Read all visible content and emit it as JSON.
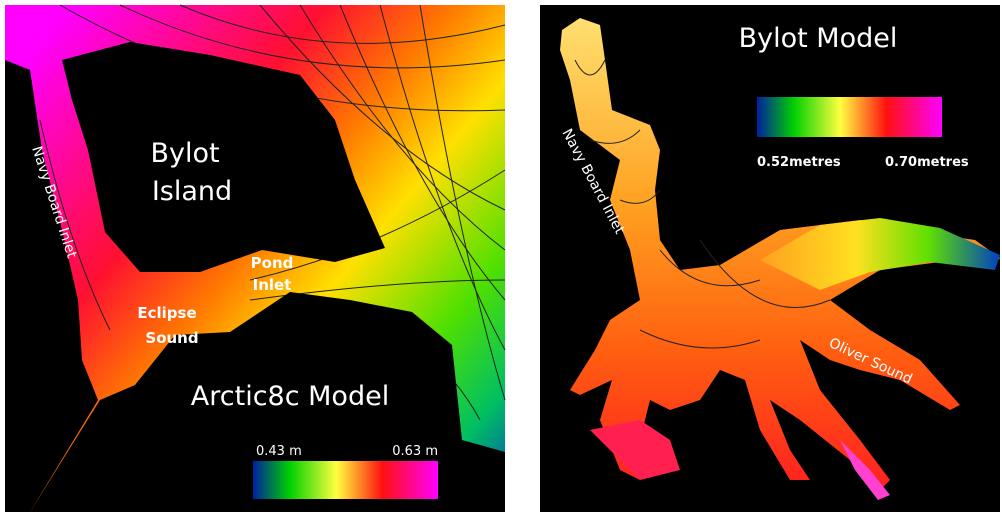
{
  "left_map": {
    "island_label": [
      "Bylot",
      "Island"
    ],
    "inlet_label": "Navy Board Inlet",
    "pond_inlet_label": [
      "Pond",
      "Inlet"
    ],
    "eclipse_sound_label": [
      "Eclipse",
      "Sound"
    ],
    "model_title": "Arctic8c Model",
    "colorbar": {
      "min_label": "0.43 m",
      "max_label": "0.63 m"
    }
  },
  "right_map": {
    "model_title": "Bylot Model",
    "inlet_label": "Navy Board Inlet",
    "oliver_sound_label": "Oliver Sound",
    "colorbar": {
      "min_label": "0.52metres",
      "max_label": "0.70metres"
    }
  }
}
